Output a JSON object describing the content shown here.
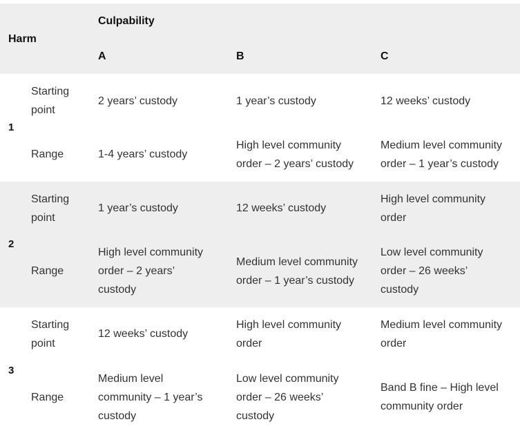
{
  "header": {
    "harm": "Harm",
    "culpability": "Culpability",
    "col_a": "A",
    "col_b": "B",
    "col_c": "C"
  },
  "rows": [
    {
      "harm": "1",
      "starting_point": {
        "label_lines": [
          "Starting",
          "point"
        ],
        "a": [
          "2 years’ custody"
        ],
        "b": [
          "1 year’s custody"
        ],
        "c": [
          "12 weeks’ custody"
        ]
      },
      "range": {
        "label": "Range",
        "a": [
          "1-4 years’ custody"
        ],
        "b": [
          "High level community",
          "order – 2 years’ custody"
        ],
        "c": [
          "Medium level community",
          "order – 1 year’s custody"
        ]
      }
    },
    {
      "harm": "2",
      "starting_point": {
        "label_lines": [
          "Starting",
          "point"
        ],
        "a": [
          "1 year’s custody"
        ],
        "b": [
          "12 weeks’ custody"
        ],
        "c": [
          "High level community",
          "order"
        ]
      },
      "range": {
        "label": "Range",
        "a": [
          "High level community",
          "order – 2 years’",
          "custody"
        ],
        "b": [
          "Medium level community",
          "order – 1 year’s custody"
        ],
        "c": [
          "Low level community",
          "order – 26 weeks’",
          "custody"
        ]
      }
    },
    {
      "harm": "3",
      "starting_point": {
        "label_lines": [
          "Starting",
          "point"
        ],
        "a": [
          "12 weeks’ custody"
        ],
        "b": [
          "High level community",
          "order"
        ],
        "c": [
          "Medium level community",
          "order"
        ]
      },
      "range": {
        "label": "Range",
        "a": [
          "Medium level",
          "community – 1 year’s",
          "custody"
        ],
        "b": [
          "Low level community",
          "order – 26 weeks’",
          "custody"
        ],
        "c": [
          "Band B fine – High level",
          "community order"
        ]
      }
    }
  ]
}
